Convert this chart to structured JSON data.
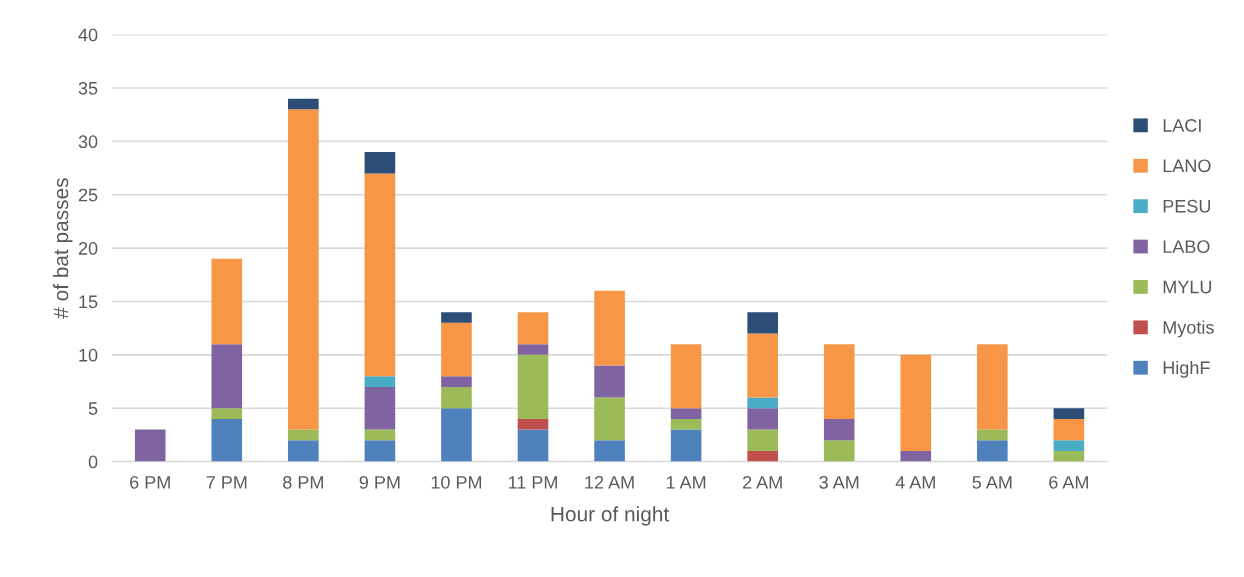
{
  "chart_data": {
    "type": "bar",
    "stacked": true,
    "xlabel": "Hour of night",
    "ylabel": "# of bat passes",
    "categories": [
      "6 PM",
      "7 PM",
      "8 PM",
      "9 PM",
      "10 PM",
      "11 PM",
      "12 AM",
      "1 AM",
      "2 AM",
      "3 AM",
      "4 AM",
      "5 AM",
      "6 AM"
    ],
    "series": [
      {
        "name": "HighF",
        "color": "#4f81bd",
        "values": [
          0,
          4,
          2,
          2,
          5,
          3,
          2,
          3,
          0,
          0,
          0,
          2,
          0
        ]
      },
      {
        "name": "Myotis",
        "color": "#c0504d",
        "values": [
          0,
          0,
          0,
          0,
          0,
          1,
          0,
          0,
          1,
          0,
          0,
          0,
          0
        ]
      },
      {
        "name": "MYLU",
        "color": "#9bbb59",
        "values": [
          0,
          1,
          1,
          1,
          2,
          6,
          4,
          1,
          2,
          2,
          0,
          1,
          1
        ]
      },
      {
        "name": "LABO",
        "color": "#8064a2",
        "values": [
          3,
          6,
          0,
          4,
          1,
          1,
          3,
          1,
          2,
          2,
          1,
          0,
          0
        ]
      },
      {
        "name": "PESU",
        "color": "#4bacc6",
        "values": [
          0,
          0,
          0,
          1,
          0,
          0,
          0,
          0,
          1,
          0,
          0,
          0,
          1
        ]
      },
      {
        "name": "LANO",
        "color": "#f79646",
        "values": [
          0,
          8,
          30,
          19,
          5,
          3,
          7,
          6,
          6,
          7,
          9,
          8,
          2
        ]
      },
      {
        "name": "LACI",
        "color": "#2c4d75",
        "values": [
          0,
          0,
          1,
          2,
          1,
          0,
          0,
          0,
          2,
          0,
          0,
          0,
          1
        ]
      }
    ],
    "ylim": [
      0,
      40
    ],
    "yticks": [
      0,
      5,
      10,
      15,
      20,
      25,
      30,
      35,
      40
    ],
    "grid": "y",
    "legend": "right"
  }
}
